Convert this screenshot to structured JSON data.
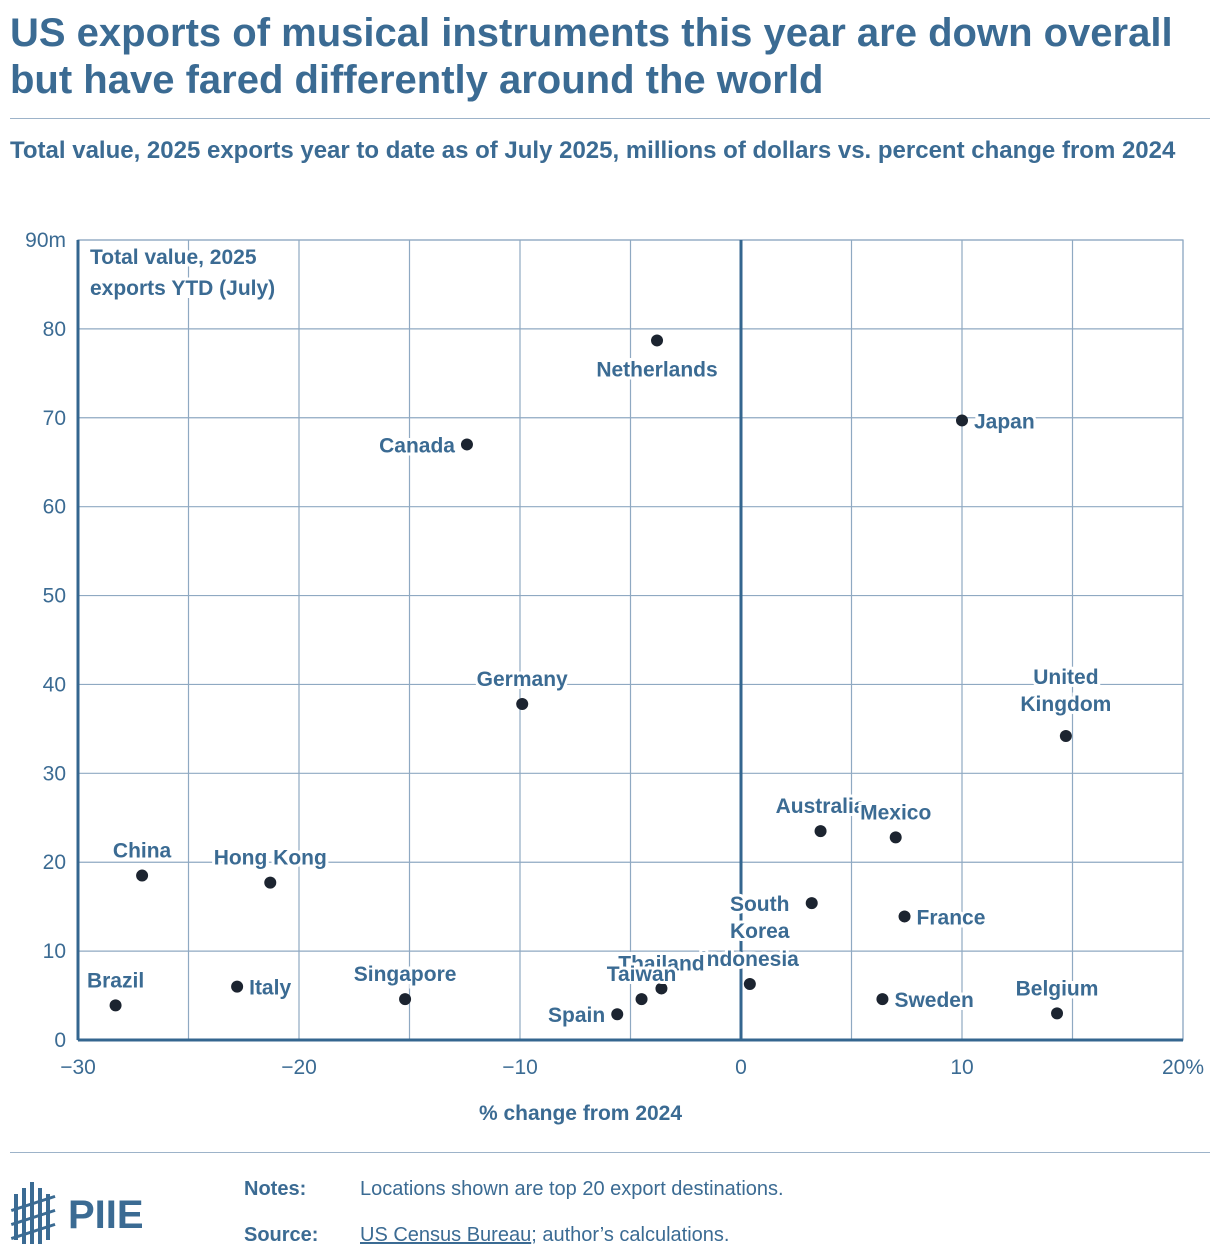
{
  "title": "US exports of musical instruments this year are down overall but have fared differently around the world",
  "subtitle": "Total value, 2025 exports year to date as of July 2025, millions of dollars vs. percent change from 2024",
  "chart_data": {
    "type": "scatter",
    "xlabel": "% change from 2024",
    "ylabel": "Total value, 2025 exports YTD (July)",
    "ylabel_lines": [
      "Total value, 2025",
      "exports YTD (July)"
    ],
    "xlim": [
      -30,
      20
    ],
    "ylim": [
      0,
      90
    ],
    "xticks": [
      -30,
      -20,
      -10,
      0,
      10,
      20
    ],
    "xtick_labels": [
      "−30",
      "−20",
      "−10",
      "0",
      "10",
      "20%"
    ],
    "yticks": [
      0,
      10,
      20,
      30,
      40,
      50,
      60,
      70,
      80,
      90
    ],
    "ytick_labels": [
      "0",
      "10",
      "20",
      "30",
      "40",
      "50",
      "60",
      "70",
      "80",
      "90m"
    ],
    "grid": true,
    "points": [
      {
        "label": "Netherlands",
        "x": -3.8,
        "y": 78.7,
        "pos": "below"
      },
      {
        "label": "Japan",
        "x": 10.0,
        "y": 69.7,
        "pos": "right"
      },
      {
        "label": "Canada",
        "x": -12.4,
        "y": 67.0,
        "pos": "left"
      },
      {
        "label": "Germany",
        "x": -9.9,
        "y": 37.8,
        "pos": "above"
      },
      {
        "label": "United Kingdom",
        "x": 14.7,
        "y": 34.2,
        "pos": "above2"
      },
      {
        "label": "Australia",
        "x": 3.6,
        "y": 23.5,
        "pos": "above"
      },
      {
        "label": "Mexico",
        "x": 7.0,
        "y": 22.8,
        "pos": "above"
      },
      {
        "label": "China",
        "x": -27.1,
        "y": 18.5,
        "pos": "above"
      },
      {
        "label": "Hong Kong",
        "x": -21.3,
        "y": 17.7,
        "pos": "above"
      },
      {
        "label": "South Korea",
        "x": 3.2,
        "y": 15.4,
        "pos": "left2"
      },
      {
        "label": "France",
        "x": 7.4,
        "y": 13.9,
        "pos": "right"
      },
      {
        "label": "Indonesia",
        "x": 0.4,
        "y": 6.3,
        "pos": "above"
      },
      {
        "label": "Thailand",
        "x": -3.6,
        "y": 5.8,
        "pos": "above"
      },
      {
        "label": "Taiwan",
        "x": -4.5,
        "y": 4.6,
        "pos": "above"
      },
      {
        "label": "Italy",
        "x": -22.8,
        "y": 6.0,
        "pos": "right"
      },
      {
        "label": "Singapore",
        "x": -15.2,
        "y": 4.6,
        "pos": "above"
      },
      {
        "label": "Sweden",
        "x": 6.4,
        "y": 4.6,
        "pos": "right"
      },
      {
        "label": "Brazil",
        "x": -28.3,
        "y": 3.9,
        "pos": "above"
      },
      {
        "label": "Belgium",
        "x": 14.3,
        "y": 3.0,
        "pos": "above"
      },
      {
        "label": "Spain",
        "x": -5.6,
        "y": 2.9,
        "pos": "left"
      }
    ]
  },
  "footer": {
    "logo_text": "PIIE",
    "notes_label": "Notes:",
    "notes_text": "Locations shown are top 20 export destinations.",
    "source_label": "Source:",
    "source_link": "US Census Bureau",
    "source_rest": "; author’s calculations."
  },
  "colors": {
    "text": "#3b6b93",
    "grid": "#8fa9c2",
    "axis": "#34668f",
    "point": "#1c2430",
    "rule": "#9db3c9"
  }
}
